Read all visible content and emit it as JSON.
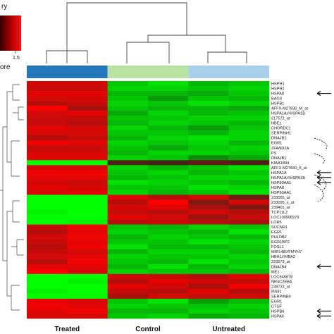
{
  "chart_data": {
    "type": "heatmap",
    "legend": {
      "title_fragment": "ry",
      "label_fragment": "ore",
      "max_tick": "1.5"
    },
    "groups": [
      {
        "name": "Treated",
        "color": "#2277bb",
        "columns": 2
      },
      {
        "name": "Control",
        "color": "#b8e2a0",
        "columns": 2
      },
      {
        "name": "Untreated",
        "color": "#a8d0ea",
        "columns": 2
      }
    ],
    "genes": [
      "HSPH1",
      "HSPH1",
      "HSPA8",
      "BAG3",
      "HSPB1",
      "AFFX-M27830_M_at",
      "HSPA1A///HSPA1B",
      "217572_at",
      "HBE1",
      "CHORDC1",
      "SERPINH1",
      "DNAJB1",
      "EGR1",
      "ZFAND2A",
      "PS",
      "DNAJB1",
      "KIAA1894",
      "AFFX-M27830_5_at",
      "HSPA1A",
      "HSPA1A///HSPA1B",
      "HSP90AA1",
      "HSPA8",
      "HSP90AA1",
      "233055_at",
      "233095_x_at",
      "239401_at",
      "TCP11L2",
      "LOC100506979",
      "LOR5",
      "SUCNR1",
      "EGR1",
      "PHLDB2",
      "EGR1BP2",
      "FOSL1",
      "MIR148///FMYH7",
      "HBA1///HBA2",
      "223573_at",
      "DNAJB4",
      "ME1",
      "LOC646878",
      "NR4C2EBA",
      "238723_at",
      "MS81",
      "SERPINB9",
      "EGR1",
      "CTGF",
      "HSPB6",
      "HSPA6"
    ],
    "values": [
      [
        1.2,
        1.2,
        -1.1,
        -1.3,
        -1.0,
        -1.1
      ],
      [
        1.1,
        1.1,
        -1.2,
        -1.2,
        -1.1,
        -1.2
      ],
      [
        1.3,
        1.3,
        -1.0,
        -1.0,
        -0.9,
        -1.1
      ],
      [
        1.2,
        1.2,
        -1.1,
        -0.8,
        -1.1,
        -1.0
      ],
      [
        1.0,
        1.1,
        -1.2,
        -1.1,
        -1.3,
        -1.2
      ],
      [
        1.5,
        0.9,
        -1.1,
        -1.0,
        -1.0,
        -0.9
      ],
      [
        1.2,
        1.3,
        -0.9,
        -1.2,
        -1.0,
        -1.1
      ],
      [
        1.1,
        1.1,
        -1.1,
        -1.1,
        -1.2,
        -1.2
      ],
      [
        1.1,
        1.0,
        -1.0,
        -1.2,
        -1.1,
        -1.0
      ],
      [
        1.3,
        1.2,
        -1.2,
        -1.0,
        -0.8,
        -1.1
      ],
      [
        1.2,
        1.2,
        -1.1,
        -1.1,
        -1.0,
        -1.2
      ],
      [
        1.0,
        1.1,
        -1.0,
        -1.2,
        -1.3,
        -1.2
      ],
      [
        1.4,
        1.3,
        -1.2,
        -1.1,
        -1.2,
        -1.0
      ],
      [
        1.1,
        1.1,
        -1.1,
        -0.9,
        -1.1,
        -1.2
      ],
      [
        1.2,
        1.2,
        -1.0,
        -1.2,
        -1.2,
        -1.1
      ],
      [
        1.3,
        1.3,
        -1.2,
        -1.1,
        -0.7,
        -0.9
      ],
      [
        -1.6,
        -1.7,
        0.3,
        0.2,
        0.4,
        0.3
      ],
      [
        1.2,
        1.2,
        -1.2,
        -1.0,
        -1.1,
        -1.3
      ],
      [
        1.4,
        1.4,
        -1.1,
        -1.2,
        -1.0,
        -1.1
      ],
      [
        1.3,
        1.3,
        -1.0,
        -1.1,
        -1.2,
        -1.2
      ],
      [
        1.2,
        1.1,
        -1.3,
        -1.2,
        -1.1,
        -1.0
      ],
      [
        1.3,
        1.2,
        -1.1,
        -1.1,
        -1.3,
        -1.2
      ],
      [
        1.2,
        1.3,
        -1.2,
        -1.0,
        -1.1,
        -1.3
      ],
      [
        -1.6,
        -1.5,
        1.3,
        1.0,
        1.2,
        0.5
      ],
      [
        -1.5,
        -1.7,
        1.0,
        1.5,
        0.6,
        1.2
      ],
      [
        -1.6,
        -1.6,
        1.2,
        1.3,
        0.9,
        0.6
      ],
      [
        -1.4,
        -1.5,
        1.1,
        1.0,
        1.2,
        1.0
      ],
      [
        -1.6,
        -1.6,
        1.3,
        1.2,
        0.8,
        1.1
      ],
      [
        -1.5,
        -1.4,
        1.0,
        1.1,
        1.0,
        0.9
      ],
      [
        1.1,
        1.4,
        -1.1,
        -1.0,
        -1.2,
        -1.1
      ],
      [
        1.0,
        1.3,
        -1.2,
        -1.1,
        -1.0,
        -1.3
      ],
      [
        1.2,
        1.4,
        -1.0,
        -1.2,
        -1.1,
        -1.0
      ],
      [
        1.1,
        1.3,
        -1.1,
        -1.1,
        -1.3,
        -1.2
      ],
      [
        1.0,
        1.4,
        -1.3,
        -1.0,
        -1.0,
        -1.1
      ],
      [
        1.1,
        1.2,
        -1.0,
        -1.2,
        -1.2,
        -1.0
      ],
      [
        1.2,
        1.3,
        -1.2,
        -1.1,
        -1.1,
        -1.2
      ],
      [
        1.0,
        1.4,
        -1.1,
        -1.0,
        -1.3,
        -1.1
      ],
      [
        1.3,
        1.3,
        -1.0,
        -1.3,
        -1.0,
        -1.2
      ],
      [
        1.5,
        1.2,
        -1.2,
        -1.1,
        -1.1,
        -1.0
      ],
      [
        -1.5,
        -1.6,
        1.2,
        1.1,
        1.0,
        1.3
      ],
      [
        -1.6,
        -1.4,
        1.0,
        1.3,
        1.2,
        1.1
      ],
      [
        -1.5,
        -1.5,
        1.3,
        1.2,
        0.9,
        1.4
      ],
      [
        -1.4,
        -1.6,
        1.1,
        1.0,
        1.3,
        1.0
      ],
      [
        -1.6,
        -1.5,
        0.9,
        1.2,
        1.1,
        1.2
      ],
      [
        1.3,
        1.2,
        -1.1,
        -1.3,
        -0.8,
        -1.0
      ],
      [
        1.4,
        1.3,
        -1.2,
        -1.1,
        -1.1,
        -1.2
      ],
      [
        1.3,
        1.4,
        -1.0,
        -1.0,
        -1.2,
        -1.1
      ],
      [
        1.2,
        1.2,
        -1.1,
        -1.2,
        -0.9,
        -1.0
      ]
    ],
    "vmin": -1.5,
    "vmax": 1.5,
    "arrows_at_rows": [
      2,
      18,
      19,
      20,
      37,
      46,
      47
    ]
  }
}
